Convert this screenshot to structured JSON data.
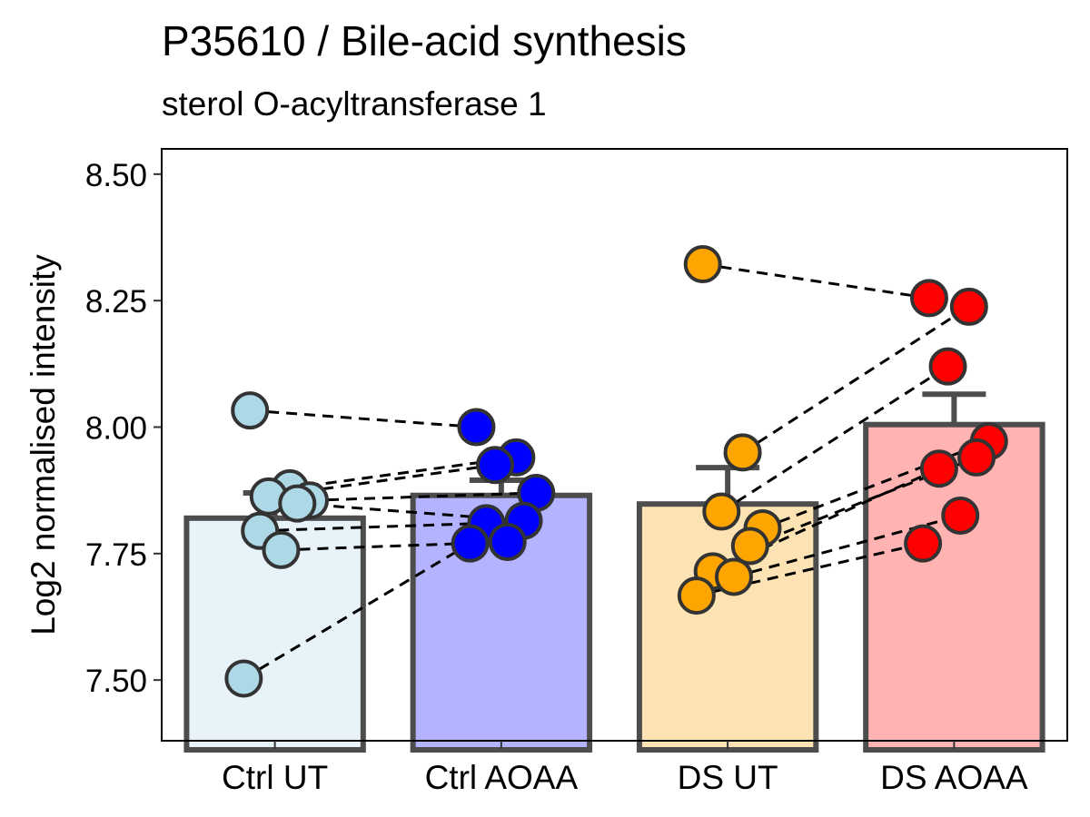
{
  "chart_data": {
    "type": "bar",
    "title": "P35610 / Bile-acid synthesis",
    "subtitle": "sterol O-acyltransferase 1",
    "xlabel": "",
    "ylabel": "Log2 normalised intensity",
    "ylim": [
      7.38,
      8.55
    ],
    "yticks": [
      7.5,
      7.75,
      8.0,
      8.25,
      8.5
    ],
    "ytick_labels": [
      "7.50",
      "7.75",
      "8.00",
      "8.25",
      "8.50"
    ],
    "categories": [
      "Ctrl UT",
      "Ctrl AOAA",
      "DS UT",
      "DS AOAA"
    ],
    "values": [
      7.82,
      7.865,
      7.848,
      8.005
    ],
    "error_upper": [
      7.87,
      7.895,
      7.92,
      8.065
    ],
    "colors": {
      "fill": [
        "#e8f3f9",
        "#b3b3ff",
        "#fde3b4",
        "#ffb3b3"
      ],
      "point": [
        "#add8e6",
        "#0000ff",
        "#ffa500",
        "#ff0000"
      ],
      "bar_outline": "#4d4d4d",
      "point_outline": "#333333",
      "link_line": "#000000"
    },
    "points": [
      [
        8.033,
        7.879,
        7.863,
        7.855,
        7.849,
        7.795,
        7.757,
        7.503
      ],
      [
        8.0,
        7.94,
        7.925,
        7.87,
        7.815,
        7.81,
        7.773,
        7.77
      ],
      [
        8.322,
        7.95,
        7.833,
        7.8,
        7.765,
        7.715,
        7.704,
        7.667
      ],
      [
        8.255,
        8.238,
        8.12,
        7.972,
        7.94,
        7.918,
        7.825,
        7.77
      ]
    ],
    "grid": false,
    "legend": "none"
  }
}
